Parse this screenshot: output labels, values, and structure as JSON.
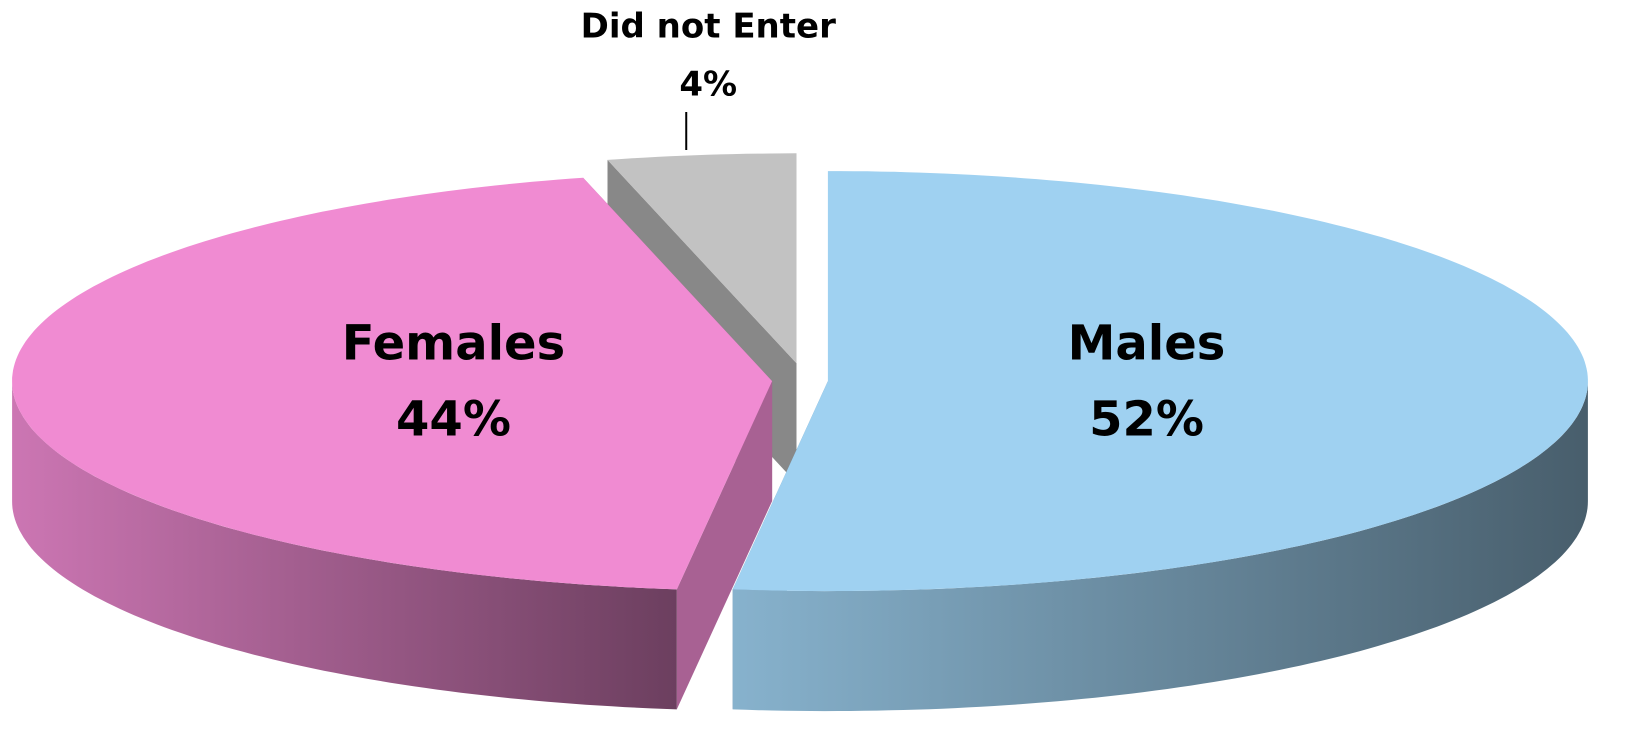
{
  "chart_data": {
    "type": "pie",
    "categories": [
      "Males",
      "Females",
      "Did not Enter"
    ],
    "values": [
      52,
      44,
      4
    ],
    "value_labels": [
      "52%",
      "44%",
      "4%"
    ],
    "colors": [
      "#9fd1f1",
      "#f08bd2",
      "#c2c2c2"
    ]
  }
}
